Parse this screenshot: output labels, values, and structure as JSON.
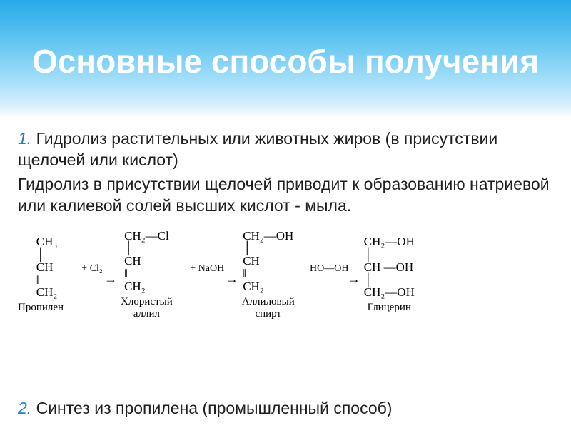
{
  "slide": {
    "title_fontsize": 46,
    "title": "Основные способы получения",
    "body_fontsize": 23,
    "struct_fontsize": 17,
    "label_fontsize": 15,
    "arrow_top_fontsize": 14,
    "arrow_fontsize": 18,
    "number_color": "#2b7bbd",
    "text_color": "#1f1f1f",
    "bg_gradient_top": "#29a9e8",
    "bg_gradient_bottom": "#ffffff",
    "p1_num": "1.",
    "p1_text": " Гидролиз растительных или животных жиров (в присутствии щелочей или кислот)",
    "p2_text": "Гидролиз в присутствии щелочей приводит к образованию натриевой или калиевой солей высших кислот - мыла.",
    "p3_num": "2.",
    "p3_text": " Синтез из пропилена (промышленный способ)"
  },
  "chem": {
    "mol1_struct": "    CH₃\n    │\n    CH\n    ‖\n    CH₂",
    "mol1_label": "Пропилен",
    "arr1_top": "+ Cl₂",
    "arr1_sym": "———→",
    "mol2_struct": "CH₂—Cl\n│\nCH\n‖\nCH₂",
    "mol2_label": "Хлористый\nаллил",
    "arr2_top": "+ NaOH",
    "arr2_sym": "————→",
    "mol3_struct": "CH₂—OH\n│\nCH\n‖\nCH₂",
    "mol3_label": "Аллиловый\nспирт",
    "arr3_top": "HO—OH",
    "arr3_sym": "————→",
    "mol4_struct": "CH₂—OH\n│\nCH —OH\n│\nCH₂—OH",
    "mol4_label": "Глицерин"
  }
}
